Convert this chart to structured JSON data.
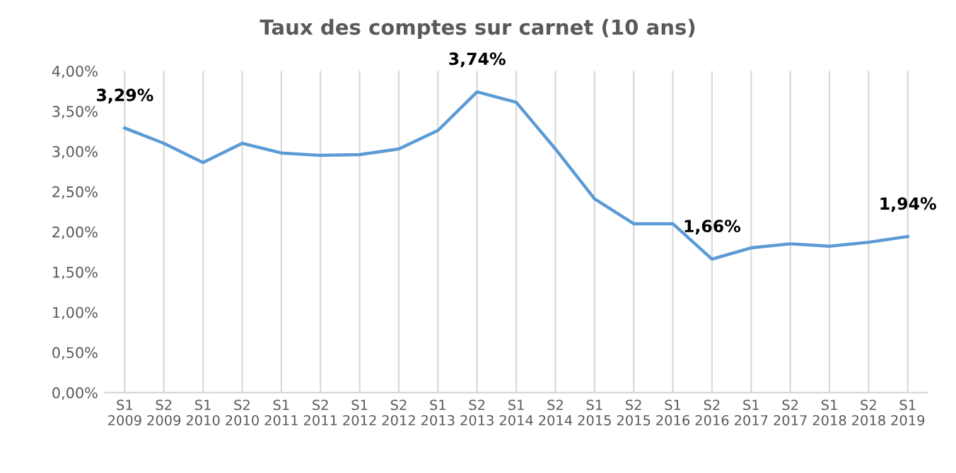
{
  "chart_data": {
    "type": "line",
    "title": "Taux des comptes sur carnet (10 ans)",
    "categories": [
      "S1\n2009",
      "S2\n2009",
      "S1\n2010",
      "S2\n2010",
      "S1\n2011",
      "S2\n2011",
      "S1\n2012",
      "S2\n2012",
      "S1\n2013",
      "S2\n2013",
      "S1\n2014",
      "S2\n2014",
      "S1\n2015",
      "S2\n2015",
      "S1\n2016",
      "S2\n2016",
      "S1\n2017",
      "S2\n2017",
      "S1\n2018",
      "S2\n2018",
      "S1\n2019"
    ],
    "series": [
      {
        "color": "#5b9bd5",
        "values": [
          3.29,
          3.1,
          2.86,
          3.1,
          2.98,
          2.95,
          2.96,
          3.03,
          3.26,
          3.74,
          3.61,
          3.03,
          2.41,
          2.1,
          2.1,
          1.66,
          1.8,
          1.85,
          1.82,
          1.87,
          1.94
        ],
        "value_labels": [
          "3,29%",
          null,
          null,
          null,
          null,
          null,
          null,
          null,
          null,
          "3,74%",
          null,
          null,
          null,
          null,
          null,
          "1,66%",
          null,
          null,
          null,
          null,
          "1,94%"
        ]
      }
    ],
    "ylim": [
      0,
      4
    ],
    "yticks": [
      {
        "value": 0,
        "label": "0,00%"
      },
      {
        "value": 0.5,
        "label": "0,50%"
      },
      {
        "value": 1,
        "label": "1,00%"
      },
      {
        "value": 1.5,
        "label": "1,50%"
      },
      {
        "value": 2,
        "label": "2,00%"
      },
      {
        "value": 2.5,
        "label": "2,50%"
      },
      {
        "value": 3,
        "label": "3,00%"
      },
      {
        "value": 3.5,
        "label": "3,50%"
      },
      {
        "value": 4,
        "label": "4,00%"
      }
    ],
    "grid": "x",
    "legend": false,
    "marker": "none",
    "line_style": "solid"
  }
}
